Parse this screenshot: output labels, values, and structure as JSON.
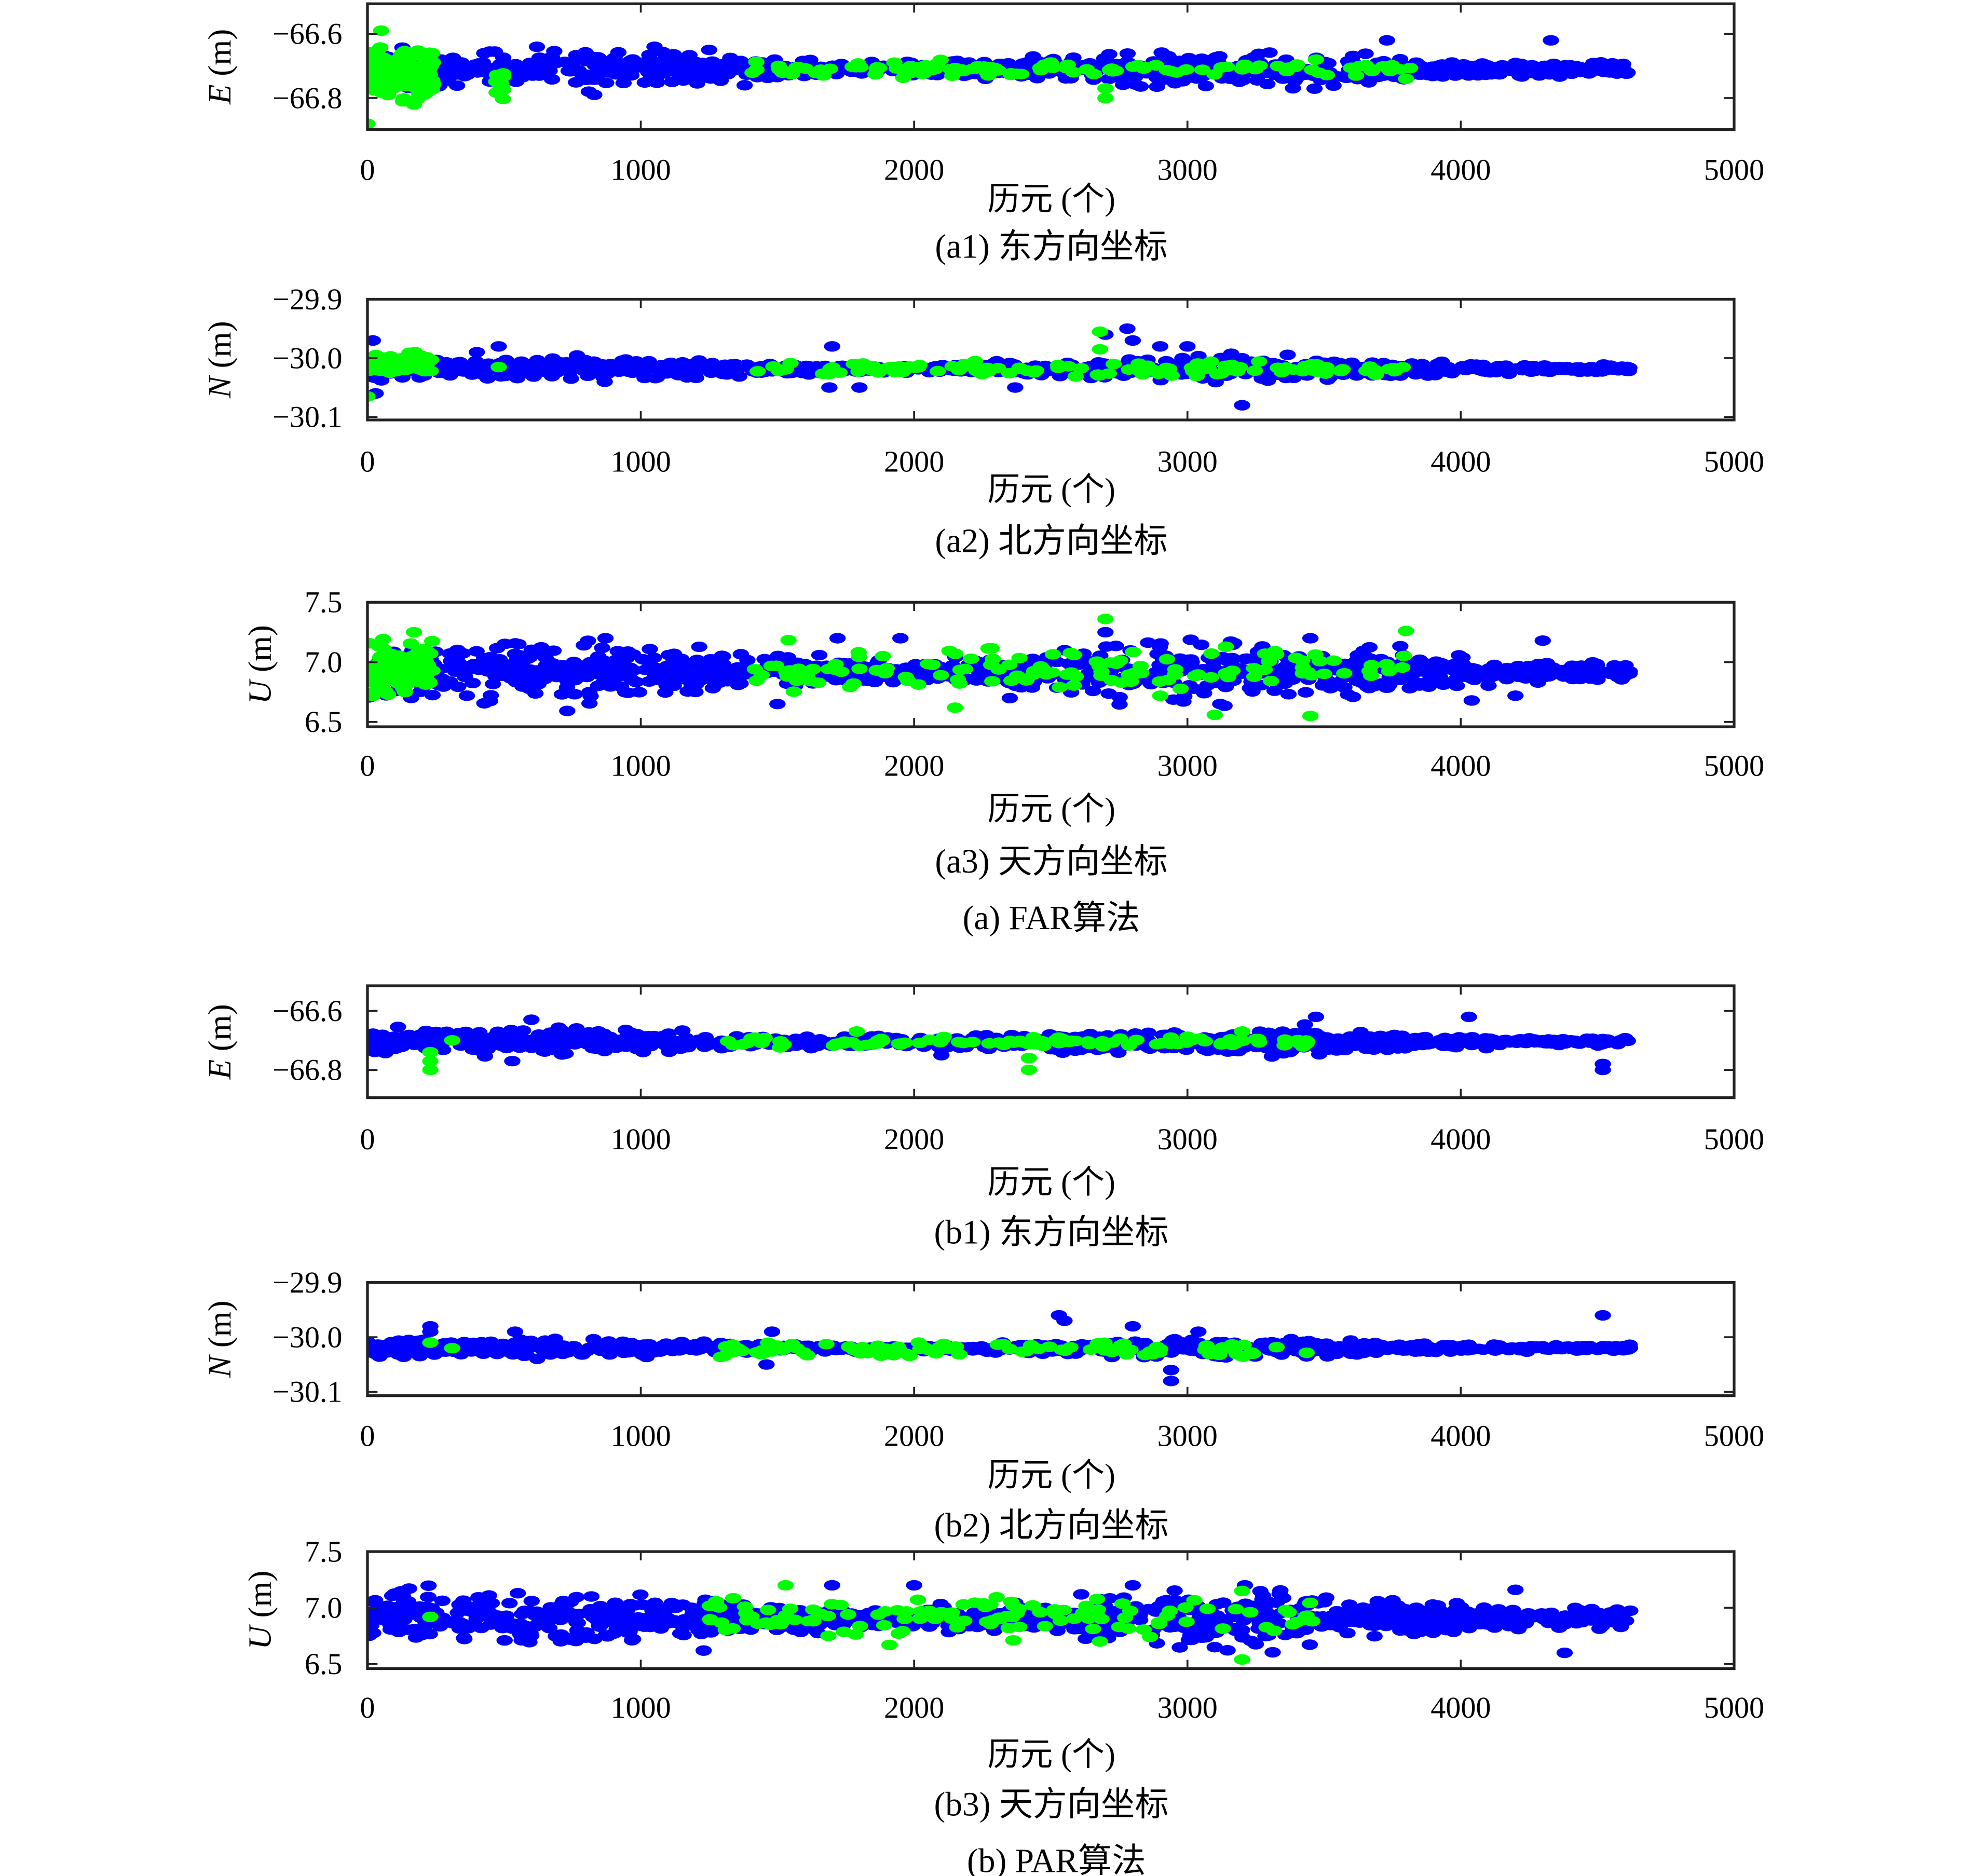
{
  "chart_data": [
    {
      "id": "a1",
      "type": "scatter",
      "group": "a",
      "caption": "(a1) 东方向坐标",
      "xlabel": "历元 (个)",
      "ylabel": "E (m)",
      "xlim": [
        0,
        5000
      ],
      "ylim": [
        -66.898,
        -66.506
      ],
      "xticks": [
        0,
        1000,
        2000,
        3000,
        4000,
        5000
      ],
      "xtick_labels": [
        "0",
        "1000",
        "2000",
        "3000",
        "4000",
        "5000"
      ],
      "yticks": [
        -66.6,
        -66.8
      ],
      "ytick_labels": [
        "−66.6",
        "−66.8"
      ],
      "series": [
        {
          "name": "blue",
          "color": "#0000ff",
          "x_max": 4620,
          "center": -66.71,
          "noise": 0.018,
          "n": 900,
          "outliers": [
            [
              620,
              -66.64
            ],
            [
              810,
              -66.78
            ],
            [
              830,
              -66.79
            ],
            [
              3730,
              -66.62
            ],
            [
              4330,
              -66.62
            ],
            [
              1050,
              -66.64
            ],
            [
              1250,
              -66.65
            ],
            [
              1380,
              -66.76
            ]
          ]
        },
        {
          "name": "green",
          "color": "#00ff00",
          "segments": [
            [
              0,
              240,
              -66.72,
              0.04,
              140
            ],
            [
              470,
              500,
              -66.76,
              0.03,
              12
            ],
            [
              1400,
              3820,
              -66.71,
              0.01,
              120
            ]
          ],
          "outliers": [
            [
              0,
              -66.88
            ],
            [
              50,
              -66.59
            ],
            [
              130,
              -66.81
            ],
            [
              170,
              -66.82
            ],
            [
              2700,
              -66.77
            ],
            [
              2700,
              -66.8
            ],
            [
              3470,
              -66.68
            ],
            [
              3800,
              -66.74
            ]
          ]
        }
      ]
    },
    {
      "id": "a2",
      "type": "scatter",
      "group": "a",
      "caption": "(a2) 北方向坐标",
      "xlabel": "历元 (个)",
      "ylabel": "N (m)",
      "xlim": [
        0,
        5000
      ],
      "ylim": [
        -30.105,
        -29.9
      ],
      "xticks": [
        0,
        1000,
        2000,
        3000,
        4000,
        5000
      ],
      "xtick_labels": [
        "0",
        "1000",
        "2000",
        "3000",
        "4000",
        "5000"
      ],
      "yticks": [
        -29.9,
        -30.0,
        -30.1
      ],
      "ytick_labels": [
        "−29.9",
        "−30.0",
        "−30.1"
      ],
      "series": [
        {
          "name": "blue",
          "color": "#0000ff",
          "x_max": 4620,
          "center": -30.018,
          "noise": 0.006,
          "n": 900,
          "outliers": [
            [
              20,
              -29.97
            ],
            [
              30,
              -30.06
            ],
            [
              400,
              -29.99
            ],
            [
              480,
              -29.98
            ],
            [
              1700,
              -29.98
            ],
            [
              1800,
              -30.05
            ],
            [
              2700,
              -29.96
            ],
            [
              2780,
              -29.95
            ],
            [
              2800,
              -29.97
            ],
            [
              2900,
              -29.98
            ],
            [
              3200,
              -30.08
            ],
            [
              3000,
              -29.98
            ],
            [
              2370,
              -30.05
            ],
            [
              1690,
              -30.05
            ]
          ]
        },
        {
          "name": "green",
          "color": "#00ff00",
          "segments": [
            [
              0,
              240,
              -30.01,
              0.007,
              100
            ],
            [
              1400,
              3820,
              -30.018,
              0.006,
              120
            ]
          ],
          "outliers": [
            [
              0,
              -30.065
            ],
            [
              2680,
              -29.955
            ],
            [
              2680,
              -29.985
            ],
            [
              480,
              -30.015
            ]
          ]
        }
      ]
    },
    {
      "id": "a3",
      "type": "scatter",
      "group": "a",
      "caption": "(a3) 天方向坐标",
      "xlabel": "历元 (个)",
      "ylabel": "U (m)",
      "xlim": [
        0,
        5000
      ],
      "ylim": [
        6.46,
        7.5
      ],
      "xticks": [
        0,
        1000,
        2000,
        3000,
        4000,
        5000
      ],
      "xtick_labels": [
        "0",
        "1000",
        "2000",
        "3000",
        "4000",
        "5000"
      ],
      "yticks": [
        7.5,
        7.0,
        6.5
      ],
      "ytick_labels": [
        "7.5",
        "7.0",
        "6.5"
      ],
      "series": [
        {
          "name": "blue",
          "color": "#0000ff",
          "x_max": 4620,
          "center": 6.92,
          "noise": 0.08,
          "n": 1000,
          "outliers": [
            [
              1720,
              7.2
            ],
            [
              1950,
              7.2
            ],
            [
              2700,
              7.25
            ],
            [
              3450,
              7.2
            ],
            [
              4300,
              7.18
            ],
            [
              1500,
              6.65
            ],
            [
              2350,
              6.7
            ],
            [
              3120,
              6.65
            ],
            [
              4040,
              6.68
            ],
            [
              4200,
              6.72
            ]
          ]
        },
        {
          "name": "green",
          "color": "#00ff00",
          "segments": [
            [
              0,
              240,
              6.95,
              0.1,
              120
            ],
            [
              1400,
              3820,
              6.95,
              0.08,
              130
            ]
          ],
          "outliers": [
            [
              170,
              7.25
            ],
            [
              2700,
              7.36
            ],
            [
              3100,
              6.56
            ],
            [
              3450,
              6.55
            ],
            [
              3800,
              7.26
            ],
            [
              2150,
              6.62
            ],
            [
              2900,
              6.72
            ]
          ]
        }
      ]
    },
    {
      "id": "b1",
      "type": "scatter",
      "group": "b",
      "caption": "(b1) 东方向坐标",
      "xlabel": "历元 (个)",
      "ylabel": "E (m)",
      "xlim": [
        0,
        5000
      ],
      "ylim": [
        -66.894,
        -66.515
      ],
      "xticks": [
        0,
        1000,
        2000,
        3000,
        4000,
        5000
      ],
      "xtick_labels": [
        "0",
        "1000",
        "2000",
        "3000",
        "4000",
        "5000"
      ],
      "yticks": [
        -66.6,
        -66.8
      ],
      "ytick_labels": [
        "−66.6",
        "−66.8"
      ],
      "series": [
        {
          "name": "blue",
          "color": "#0000ff",
          "x_max": 4620,
          "center": -66.705,
          "noise": 0.014,
          "n": 900,
          "outliers": [
            [
              530,
              -66.77
            ],
            [
              600,
              -66.63
            ],
            [
              3470,
              -66.62
            ],
            [
              4030,
              -66.62
            ],
            [
              4520,
              -66.78
            ],
            [
              4520,
              -66.8
            ],
            [
              2100,
              -66.75
            ]
          ]
        },
        {
          "name": "green",
          "color": "#00ff00",
          "segments": [
            [
              1250,
              3460,
              -66.705,
              0.008,
              100
            ]
          ],
          "outliers": [
            [
              230,
              -66.74
            ],
            [
              230,
              -66.77
            ],
            [
              230,
              -66.8
            ],
            [
              310,
              -66.7
            ],
            [
              2420,
              -66.76
            ],
            [
              2420,
              -66.8
            ],
            [
              1790,
              -66.67
            ],
            [
              3200,
              -66.67
            ]
          ]
        }
      ]
    },
    {
      "id": "b2",
      "type": "scatter",
      "group": "b",
      "caption": "(b2) 北方向坐标",
      "xlabel": "历元 (个)",
      "ylabel": "N (m)",
      "xlim": [
        0,
        5000
      ],
      "ylim": [
        -30.107,
        -29.9
      ],
      "xticks": [
        0,
        1000,
        2000,
        3000,
        4000,
        5000
      ],
      "xtick_labels": [
        "0",
        "1000",
        "2000",
        "3000",
        "4000",
        "5000"
      ],
      "yticks": [
        -29.9,
        -30.0,
        -30.1
      ],
      "ytick_labels": [
        "−29.9",
        "−30.0",
        "−30.1"
      ],
      "series": [
        {
          "name": "blue",
          "color": "#0000ff",
          "x_max": 4620,
          "center": -30.02,
          "noise": 0.005,
          "n": 900,
          "outliers": [
            [
              230,
              -29.98
            ],
            [
              230,
              -29.99
            ],
            [
              540,
              -29.99
            ],
            [
              1480,
              -29.99
            ],
            [
              1460,
              -30.05
            ],
            [
              2530,
              -29.96
            ],
            [
              2550,
              -29.97
            ],
            [
              2800,
              -29.98
            ],
            [
              2940,
              -30.06
            ],
            [
              2940,
              -30.08
            ],
            [
              4520,
              -29.96
            ],
            [
              3040,
              -29.99
            ]
          ]
        },
        {
          "name": "green",
          "color": "#00ff00",
          "segments": [
            [
              1250,
              3460,
              -30.022,
              0.006,
              100
            ]
          ],
          "outliers": [
            [
              230,
              -30.01
            ],
            [
              310,
              -30.02
            ],
            [
              3200,
              -30.035
            ],
            [
              1900,
              -30.03
            ]
          ]
        }
      ]
    },
    {
      "id": "b3",
      "type": "scatter",
      "group": "b",
      "caption": "(b3) 天方向坐标",
      "xlabel": "历元 (个)",
      "ylabel": "U (m)",
      "xlim": [
        0,
        5000
      ],
      "ylim": [
        6.46,
        7.5
      ],
      "xticks": [
        0,
        1000,
        2000,
        3000,
        4000,
        5000
      ],
      "xtick_labels": [
        "0",
        "1000",
        "2000",
        "3000",
        "4000",
        "5000"
      ],
      "yticks": [
        7.5,
        7.0,
        6.5
      ],
      "ytick_labels": [
        "7.5",
        "7.0",
        "6.5"
      ],
      "series": [
        {
          "name": "blue",
          "color": "#0000ff",
          "x_max": 4620,
          "center": 6.91,
          "noise": 0.08,
          "n": 1000,
          "outliers": [
            [
              1700,
              7.2
            ],
            [
              2000,
              7.2
            ],
            [
              2800,
              7.2
            ],
            [
              3210,
              7.2
            ],
            [
              4200,
              7.16
            ],
            [
              4380,
              6.6
            ],
            [
              1230,
              6.62
            ],
            [
              3100,
              6.65
            ],
            [
              550,
              7.13
            ]
          ]
        },
        {
          "name": "green",
          "color": "#00ff00",
          "segments": [
            [
              1250,
              3460,
              6.92,
              0.08,
              120
            ]
          ],
          "outliers": [
            [
              1530,
              7.2
            ],
            [
              3200,
              6.54
            ],
            [
              3200,
              7.15
            ],
            [
              2680,
              6.7
            ],
            [
              1910,
              6.67
            ],
            [
              230,
              6.92
            ]
          ]
        }
      ]
    }
  ],
  "group_captions": {
    "a": "(a) FAR算法",
    "b": "(b) PAR算法"
  }
}
